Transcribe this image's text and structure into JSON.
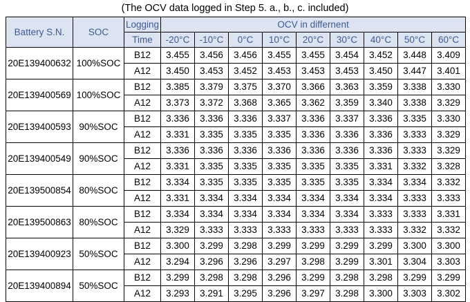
{
  "caption": "(The OCV data logged in Step 5. a., b., c. included)",
  "headers": {
    "battery_sn": "Battery S.N.",
    "soc": "SOC",
    "logging_line1": "Logging",
    "logging_line2": "Time",
    "ocv_group": "OCV in differnent",
    "temperatures": [
      "-20°C",
      "-10°C",
      "0°C",
      "10°C",
      "20°C",
      "30°C",
      "40°C",
      "50°C",
      "60°C"
    ]
  },
  "batteries": [
    {
      "sn": "20E139400632",
      "soc": "100%SOC",
      "rows": [
        {
          "time": "B12",
          "values": [
            "3.455",
            "3.456",
            "3.456",
            "3.455",
            "3.455",
            "3.454",
            "3.452",
            "3.448",
            "3.409"
          ]
        },
        {
          "time": "A12",
          "values": [
            "3.450",
            "3.453",
            "3.452",
            "3.453",
            "3.453",
            "3.453",
            "3.450",
            "3.447",
            "3.401"
          ]
        }
      ]
    },
    {
      "sn": "20E139400569",
      "soc": "100%SOC",
      "rows": [
        {
          "time": "B12",
          "values": [
            "3.385",
            "3.379",
            "3.375",
            "3.370",
            "3.366",
            "3.363",
            "3.359",
            "3.338",
            "3.330"
          ]
        },
        {
          "time": "A12",
          "values": [
            "3.373",
            "3.372",
            "3.368",
            "3.365",
            "3.362",
            "3.359",
            "3.340",
            "3.338",
            "3.329"
          ]
        }
      ]
    },
    {
      "sn": "20E139400593",
      "soc": "90%SOC",
      "rows": [
        {
          "time": "B12",
          "values": [
            "3.336",
            "3.336",
            "3.336",
            "3.337",
            "3.336",
            "3.337",
            "3.336",
            "3.335",
            "3.330"
          ]
        },
        {
          "time": "A12",
          "values": [
            "3.331",
            "3.335",
            "3.335",
            "3.335",
            "3.336",
            "3.336",
            "3.336",
            "3.333",
            "3.329"
          ]
        }
      ]
    },
    {
      "sn": "20E139400549",
      "soc": "90%SOC",
      "rows": [
        {
          "time": "B12",
          "values": [
            "3.336",
            "3.336",
            "3.336",
            "3.336",
            "3.336",
            "3.336",
            "3.336",
            "3.333",
            "3.329"
          ]
        },
        {
          "time": "A12",
          "values": [
            "3.331",
            "3.335",
            "3.335",
            "3.335",
            "3.335",
            "3.335",
            "3.331",
            "3.332",
            "3.328"
          ]
        }
      ]
    },
    {
      "sn": "20E139500854",
      "soc": "80%SOC",
      "rows": [
        {
          "time": "B12",
          "values": [
            "3.334",
            "3.335",
            "3.335",
            "3.335",
            "3.335",
            "3.335",
            "3.334",
            "3.334",
            "3.332"
          ]
        },
        {
          "time": "A12",
          "values": [
            "3.331",
            "3.334",
            "3.334",
            "3.334",
            "3.334",
            "3.334",
            "3.334",
            "3.333",
            "3.333"
          ]
        }
      ]
    },
    {
      "sn": "20E139500863",
      "soc": "80%SOC",
      "rows": [
        {
          "time": "B12",
          "values": [
            "3.334",
            "3.334",
            "3.334",
            "3.334",
            "3.334",
            "3.334",
            "3.333",
            "3.333",
            "3.331"
          ]
        },
        {
          "time": "A12",
          "values": [
            "3.329",
            "3.333",
            "3.333",
            "3.333",
            "3.333",
            "3.333",
            "3.333",
            "3.332",
            "3.332"
          ]
        }
      ]
    },
    {
      "sn": "20E139400923",
      "soc": "50%SOC",
      "rows": [
        {
          "time": "B12",
          "values": [
            "3.300",
            "3.299",
            "3.298",
            "3.299",
            "3.299",
            "3.299",
            "3.299",
            "3.300",
            "3.300"
          ]
        },
        {
          "time": "A12",
          "values": [
            "3.294",
            "3.296",
            "3.296",
            "3.297",
            "3.298",
            "3.299",
            "3.301",
            "3.304",
            "3.303"
          ]
        }
      ]
    },
    {
      "sn": "20E139400894",
      "soc": "50%SOC",
      "rows": [
        {
          "time": "B12",
          "values": [
            "3.299",
            "3.298",
            "3.298",
            "3.296",
            "3.299",
            "3.298",
            "3.298",
            "3.299",
            "3.299"
          ]
        },
        {
          "time": "A12",
          "values": [
            "3.293",
            "3.291",
            "3.295",
            "3.296",
            "3.297",
            "3.298",
            "3.300",
            "3.303",
            "3.302"
          ]
        }
      ]
    }
  ]
}
